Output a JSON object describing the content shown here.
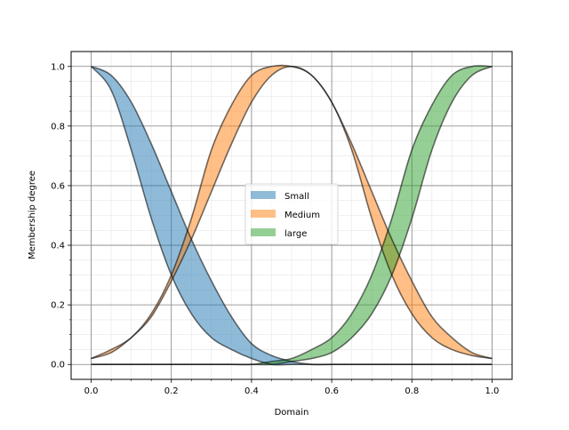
{
  "chart_data": {
    "type": "area",
    "title": "",
    "xlabel": "Domain",
    "ylabel": "Membership degree",
    "xlim": [
      -0.05,
      1.05
    ],
    "ylim": [
      -0.05,
      1.05
    ],
    "xticks": [
      "0.0",
      "0.2",
      "0.4",
      "0.6",
      "0.8",
      "1.0"
    ],
    "yticks": [
      "0.0",
      "0.2",
      "0.4",
      "0.6",
      "0.8",
      "1.0"
    ],
    "grid": true,
    "minor_grid": true,
    "legend_position": "center",
    "x": [
      0.0,
      0.05,
      0.1,
      0.15,
      0.2,
      0.25,
      0.3,
      0.35,
      0.4,
      0.45,
      0.5,
      0.55,
      0.6,
      0.65,
      0.7,
      0.75,
      0.8,
      0.85,
      0.9,
      0.95,
      1.0
    ],
    "series": [
      {
        "name": "Small",
        "color": "#1f77b4",
        "upper": [
          1.0,
          0.97,
          0.88,
          0.74,
          0.58,
          0.42,
          0.28,
          0.16,
          0.07,
          0.03,
          0.01,
          0.0,
          0.0,
          0.0,
          0.0,
          0.0,
          0.0,
          0.0,
          0.0,
          0.0,
          0.0
        ],
        "lower": [
          1.0,
          0.92,
          0.72,
          0.49,
          0.3,
          0.17,
          0.09,
          0.05,
          0.02,
          0.0,
          0.0,
          0.0,
          0.0,
          0.0,
          0.0,
          0.0,
          0.0,
          0.0,
          0.0,
          0.0,
          0.0
        ]
      },
      {
        "name": "Medium",
        "color": "#ff7f0e",
        "upper": [
          0.02,
          0.05,
          0.09,
          0.17,
          0.3,
          0.49,
          0.72,
          0.87,
          0.97,
          1.0,
          1.0,
          0.97,
          0.88,
          0.74,
          0.58,
          0.42,
          0.28,
          0.16,
          0.09,
          0.04,
          0.02
        ],
        "lower": [
          0.02,
          0.04,
          0.09,
          0.16,
          0.28,
          0.42,
          0.58,
          0.74,
          0.88,
          0.97,
          1.0,
          0.97,
          0.88,
          0.72,
          0.49,
          0.3,
          0.17,
          0.09,
          0.05,
          0.03,
          0.02
        ]
      },
      {
        "name": "large",
        "color": "#2ca02c",
        "upper": [
          0.0,
          0.0,
          0.0,
          0.0,
          0.0,
          0.0,
          0.0,
          0.0,
          0.0,
          0.01,
          0.02,
          0.05,
          0.09,
          0.17,
          0.3,
          0.49,
          0.72,
          0.87,
          0.97,
          1.0,
          1.0
        ],
        "lower": [
          0.0,
          0.0,
          0.0,
          0.0,
          0.0,
          0.0,
          0.0,
          0.0,
          0.0,
          0.0,
          0.01,
          0.02,
          0.04,
          0.09,
          0.17,
          0.3,
          0.49,
          0.72,
          0.88,
          0.97,
          1.0
        ]
      }
    ]
  }
}
